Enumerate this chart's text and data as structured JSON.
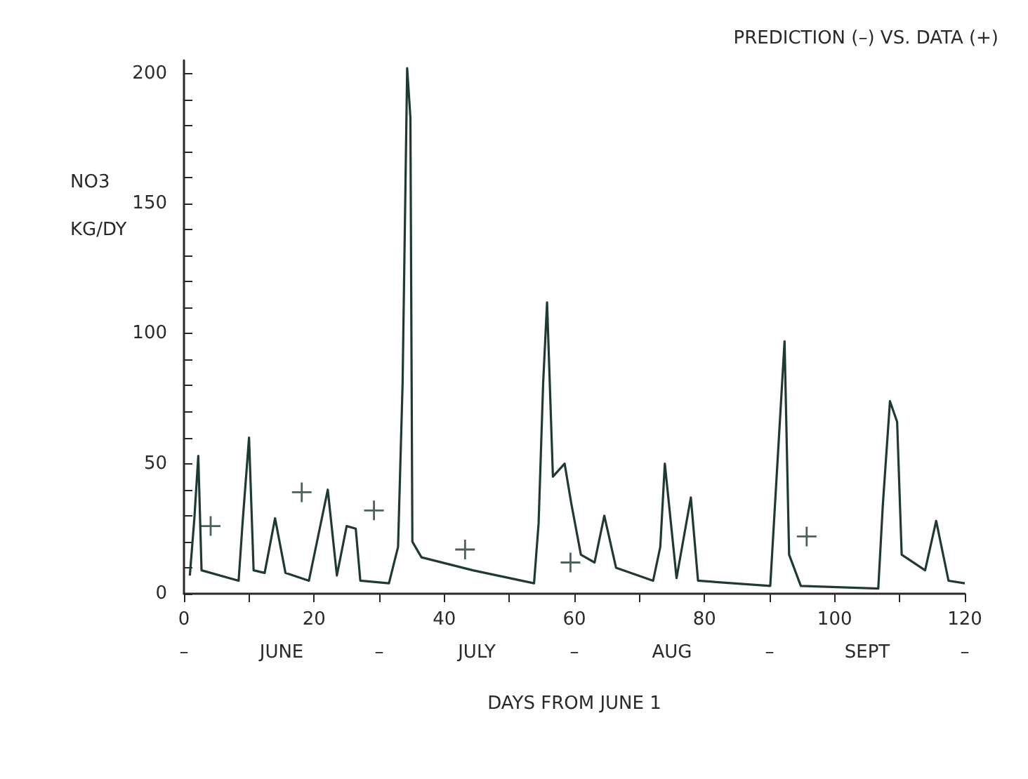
{
  "chart_data": {
    "type": "line",
    "title": "PREDICTION (–) VS. DATA (+)",
    "xlabel": "DAYS FROM JUNE 1",
    "ylabel": "NO3\nKG/DY",
    "annotations": [
      "–",
      "JUNE",
      "–",
      "JULY",
      "–",
      "AUG",
      "–",
      "SEPT",
      "–"
    ],
    "series": [
      {
        "marker": "none",
        "color": "#1f3a35",
        "x": [
          0.9,
          1.6,
          2.2,
          2.7,
          8.4,
          9.0,
          10.0,
          10.7,
          12.4,
          14.0,
          15.6,
          19.2,
          22.1,
          23.5,
          25.0,
          26.4,
          27.1,
          31.5,
          32.9,
          33.6,
          34.3,
          34.8,
          35.1,
          36.5,
          44.4,
          53.8,
          54.5,
          55.2,
          55.8,
          56.7,
          58.5,
          59.5,
          61.0,
          63.1,
          64.6,
          66.4,
          72.1,
          73.2,
          73.9,
          75.7,
          77.9,
          79.0,
          90.1,
          91.2,
          92.3,
          93.0,
          94.8,
          106.7,
          107.4,
          108.5,
          109.6,
          110.3,
          113.9,
          115.6,
          117.5,
          120.0
        ],
        "values": [
          7,
          29,
          53,
          9,
          5,
          27,
          60,
          9,
          8,
          29,
          8,
          5,
          40,
          7,
          26,
          25,
          5,
          4,
          18,
          81,
          202,
          183,
          20,
          14,
          9,
          4,
          27,
          81,
          112,
          45,
          50,
          35,
          15,
          12,
          30,
          10,
          5,
          18,
          50,
          6,
          37,
          5,
          3,
          50,
          97,
          15,
          3,
          2,
          34,
          74,
          66,
          15,
          9,
          28,
          5,
          4
        ]
      },
      {
        "type": "scatter",
        "marker": "cross",
        "color": "#1f3a35",
        "x": [
          4.1,
          18.1,
          29.2,
          43.2,
          59.4,
          95.7
        ],
        "values": [
          26,
          39,
          32,
          17,
          12,
          22
        ]
      }
    ],
    "xlim": [
      0,
      120
    ],
    "xticks": [
      0,
      {
        "value": 10,
        "label": null
      },
      20,
      {
        "value": 30,
        "label": null
      },
      40,
      {
        "value": 50,
        "label": null
      },
      60,
      {
        "value": 70,
        "label": null
      },
      80,
      {
        "value": 90,
        "label": null
      },
      100,
      {
        "value": 110,
        "label": null
      },
      120
    ],
    "ylim": [
      0,
      205
    ],
    "yticks": [
      0,
      {
        "value": 10,
        "label": null
      },
      {
        "value": 20,
        "label": null
      },
      {
        "value": 30,
        "label": null
      },
      {
        "value": 40,
        "label": null
      },
      50,
      {
        "value": 60,
        "label": null
      },
      {
        "value": 70,
        "label": null
      },
      {
        "value": 80,
        "label": null
      },
      {
        "value": 90,
        "label": null
      },
      100,
      {
        "value": 110,
        "label": null
      },
      {
        "value": 120,
        "label": null
      },
      {
        "value": 130,
        "label": null
      },
      {
        "value": 140,
        "label": null
      },
      150,
      {
        "value": 160,
        "label": null
      },
      {
        "value": 170,
        "label": null
      },
      {
        "value": 180,
        "label": null
      },
      {
        "value": 190,
        "label": null
      },
      200
    ],
    "grid": false
  }
}
